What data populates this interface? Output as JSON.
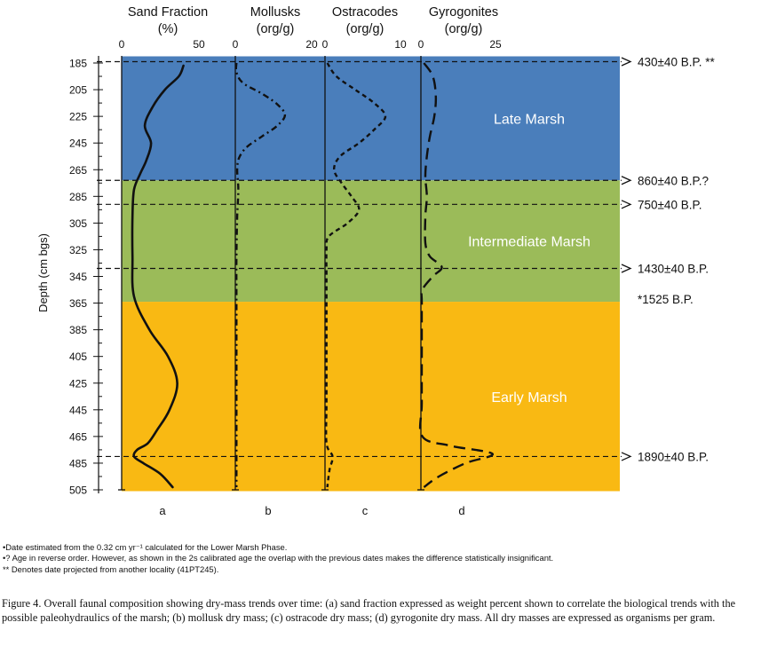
{
  "colors": {
    "late": "#4a7ebb",
    "intermediate": "#9bbb59",
    "early": "#f9b913",
    "line": "#111111"
  },
  "chart_data": {
    "type": "line",
    "orientation": "depth-profile",
    "ylabel": "Depth (cm bgs)",
    "yticks": [
      185,
      205,
      225,
      245,
      265,
      285,
      305,
      325,
      345,
      365,
      385,
      405,
      425,
      445,
      465,
      485,
      505
    ],
    "ylim": [
      180,
      506
    ],
    "zones": [
      {
        "name": "Late Marsh",
        "from": 180,
        "to": 273
      },
      {
        "name": "Intermediate Marsh",
        "from": 273,
        "to": 364
      },
      {
        "name": "Early Marsh",
        "from": 364,
        "to": 506
      }
    ],
    "panels": [
      {
        "id": "a",
        "title": "Sand Fraction",
        "unit": "(%)",
        "xlim": [
          0,
          50
        ],
        "xticks": [
          0,
          50
        ],
        "dash": "solid",
        "depth": [
          187,
          195,
          205,
          218,
          232,
          245,
          258,
          268,
          280,
          300,
          330,
          360,
          385,
          405,
          425,
          445,
          460,
          470,
          475,
          480,
          485,
          493,
          503
        ],
        "values": [
          40,
          37,
          28,
          20,
          15,
          19,
          16,
          12,
          8,
          7,
          7,
          8,
          18,
          30,
          36,
          31,
          23,
          17,
          10,
          8,
          14,
          25,
          33
        ]
      },
      {
        "id": "b",
        "title": "Mollusks",
        "unit": "(org/g)",
        "xlim": [
          0,
          20
        ],
        "xticks": [
          0,
          20
        ],
        "dash": "dashdot",
        "depth": [
          185,
          192,
          200,
          208,
          216,
          224,
          232,
          240,
          248,
          256,
          265,
          280,
          300,
          330,
          360,
          400,
          440,
          480,
          503
        ],
        "values": [
          0.3,
          0.3,
          2,
          7,
          11,
          13,
          11,
          7,
          3,
          1,
          0.5,
          0.8,
          0.5,
          0.3,
          0.3,
          0.3,
          0.3,
          0.3,
          0.3
        ]
      },
      {
        "id": "c",
        "title": "Ostracodes",
        "unit": "(org/g)",
        "xlim": [
          0,
          10
        ],
        "xticks": [
          0,
          10
        ],
        "dash": "dashed",
        "depth": [
          185,
          195,
          205,
          215,
          225,
          235,
          245,
          255,
          265,
          275,
          285,
          295,
          305,
          315,
          325,
          345,
          365,
          400,
          440,
          470,
          480,
          490,
          503
        ],
        "values": [
          0.3,
          1.5,
          4,
          6.5,
          8,
          6.5,
          4.5,
          2,
          1.2,
          2.2,
          3.5,
          4.5,
          3,
          0.5,
          0.2,
          0.2,
          0.2,
          0.2,
          0.2,
          0.2,
          1,
          0.6,
          0.3
        ]
      },
      {
        "id": "d",
        "title": "Gyrogonites",
        "unit": "(org/g)",
        "xlim": [
          0,
          25
        ],
        "xticks": [
          0,
          25
        ],
        "dash": "longdash",
        "depth": [
          185,
          195,
          210,
          225,
          240,
          255,
          270,
          285,
          300,
          320,
          330,
          338,
          345,
          355,
          365,
          400,
          440,
          465,
          472,
          478,
          485,
          495,
          503
        ],
        "values": [
          1,
          4,
          5,
          4.5,
          3,
          2,
          1.5,
          2,
          1.5,
          1.5,
          3,
          7,
          4,
          0.5,
          0.3,
          0.3,
          0.3,
          0.5,
          10,
          24,
          15,
          6,
          1
        ]
      }
    ],
    "dates": [
      {
        "depth": 184,
        "label": "430±40 B.P. **",
        "line": true
      },
      {
        "depth": 273,
        "label": "860±40 B.P.?",
        "line": true
      },
      {
        "depth": 291,
        "label": "750±40 B.P.",
        "line": true
      },
      {
        "depth": 339,
        "label": "1430±40 B.P.",
        "line": true
      },
      {
        "depth": 362,
        "label": "*1525 B.P.",
        "line": false
      },
      {
        "depth": 480,
        "label": "1890±40 B.P.",
        "line": true
      }
    ]
  },
  "notes": [
    "•Date estimated from the 0.32 cm yr⁻¹ calculated for the Lower Marsh Phase.",
    "•? Age in reverse order.  However, as shown in the 2s calibrated age the overlap with the previous dates makes the difference statistically insignificant.",
    "** Denotes date projected from another locality (41PT245)."
  ],
  "caption": "Figure 4. Overall faunal composition showing dry-mass trends over time: (a) sand fraction expressed as weight percent shown to correlate the biological trends with the possible paleohydraulics of the marsh; (b) mollusk dry mass; (c) ostracode dry mass; (d) gyrogonite dry mass. All dry masses are expressed as organisms per gram."
}
